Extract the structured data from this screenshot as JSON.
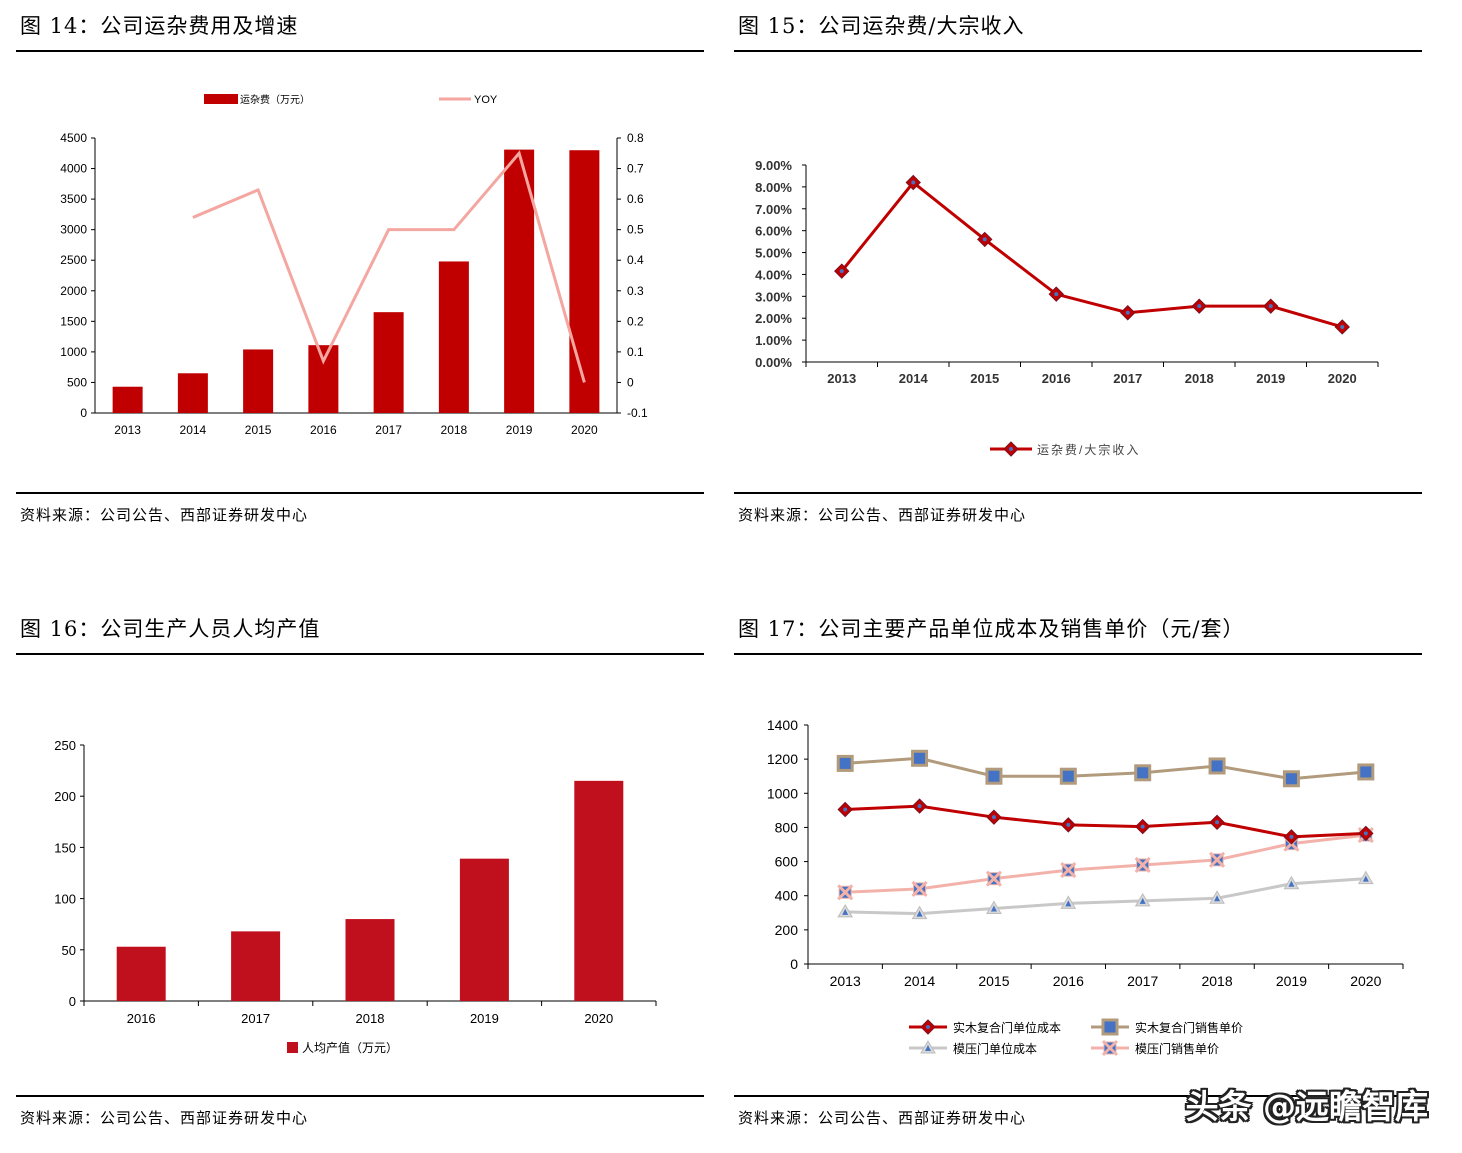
{
  "figures": [
    {
      "title": "图 14：公司运杂费用及增速",
      "source": "资料来源：公司公告、西部证券研发中心"
    },
    {
      "title": "图 15：公司运杂费/大宗收入",
      "source": "资料来源：公司公告、西部证券研发中心"
    },
    {
      "title": "图 16：公司生产人员人均产值",
      "source": "资料来源：公司公告、西部证券研发中心"
    },
    {
      "title": "图 17：公司主要产品单位成本及销售单价（元/套）",
      "source": "资料来源：公司公告、西部证券研发中心"
    }
  ],
  "watermark": "头条 @远瞻智库",
  "chart_data": [
    {
      "type": "bar",
      "categories": [
        "2013",
        "2014",
        "2015",
        "2016",
        "2017",
        "2018",
        "2019",
        "2020"
      ],
      "series": [
        {
          "name": "运杂费（万元）",
          "type": "bar",
          "axis": "left",
          "color": "#C00000",
          "values": [
            430,
            650,
            1040,
            1110,
            1650,
            2480,
            4310,
            4300
          ]
        },
        {
          "name": "YOY",
          "type": "line",
          "axis": "right",
          "color": "#F4A6A0",
          "values": [
            null,
            0.54,
            0.63,
            0.07,
            0.5,
            0.5,
            0.75,
            0.0
          ]
        }
      ],
      "yticks_left": [
        "0",
        "500",
        "1000",
        "1500",
        "2000",
        "2500",
        "3000",
        "3500",
        "4000",
        "4500"
      ],
      "yticks_right": [
        "-0.1",
        "0",
        "0.1",
        "0.2",
        "0.3",
        "0.4",
        "0.5",
        "0.6",
        "0.7",
        "0.8"
      ],
      "ylim_left": [
        0,
        4500
      ],
      "ylim_right": [
        -0.1,
        0.8
      ],
      "legend": "top",
      "grid": false
    },
    {
      "type": "line",
      "categories": [
        "2013",
        "2014",
        "2015",
        "2016",
        "2017",
        "2018",
        "2019",
        "2020"
      ],
      "series": [
        {
          "name": "运杂费/大宗收入",
          "color": "#C00000",
          "values": [
            0.0415,
            0.082,
            0.056,
            0.031,
            0.0225,
            0.0255,
            0.0255,
            0.016
          ]
        }
      ],
      "yticks": [
        "0.00%",
        "1.00%",
        "2.00%",
        "3.00%",
        "4.00%",
        "5.00%",
        "6.00%",
        "7.00%",
        "8.00%",
        "9.00%"
      ],
      "ylim": [
        0,
        0.09
      ],
      "legend": "bottom",
      "grid": false
    },
    {
      "type": "bar",
      "categories": [
        "2016",
        "2017",
        "2018",
        "2019",
        "2020"
      ],
      "series": [
        {
          "name": "人均产值（万元）",
          "color": "#C0101E",
          "values": [
            53,
            68,
            80,
            139,
            215
          ]
        }
      ],
      "yticks": [
        "0",
        "50",
        "100",
        "150",
        "200",
        "250"
      ],
      "ylim": [
        0,
        250
      ],
      "legend": "bottom",
      "grid": false
    },
    {
      "type": "line",
      "categories": [
        "2013",
        "2014",
        "2015",
        "2016",
        "2017",
        "2018",
        "2019",
        "2020"
      ],
      "series": [
        {
          "name": "实木复合门单位成本",
          "color": "#C00000",
          "marker": "diamond",
          "marker_fill": "#C00000",
          "values": [
            905,
            925,
            860,
            815,
            805,
            830,
            745,
            765
          ]
        },
        {
          "name": "实木复合门销售单价",
          "color": "#B19B7C",
          "marker": "square",
          "marker_fill": "#4472C4",
          "values": [
            1175,
            1205,
            1100,
            1100,
            1120,
            1160,
            1085,
            1125
          ]
        },
        {
          "name": "模压门单位成本",
          "color": "#C8C8C8",
          "marker": "triangle",
          "marker_fill": "#4472C4",
          "values": [
            305,
            295,
            325,
            355,
            370,
            385,
            470,
            500
          ]
        },
        {
          "name": "模压门销售单价",
          "color": "#F2B2AA",
          "marker": "x",
          "marker_fill": "#4472C4",
          "values": [
            420,
            440,
            500,
            550,
            580,
            610,
            705,
            755
          ]
        }
      ],
      "yticks": [
        "0",
        "200",
        "400",
        "600",
        "800",
        "1000",
        "1200",
        "1400"
      ],
      "ylim": [
        0,
        1400
      ],
      "legend": "bottom",
      "grid": false
    }
  ]
}
